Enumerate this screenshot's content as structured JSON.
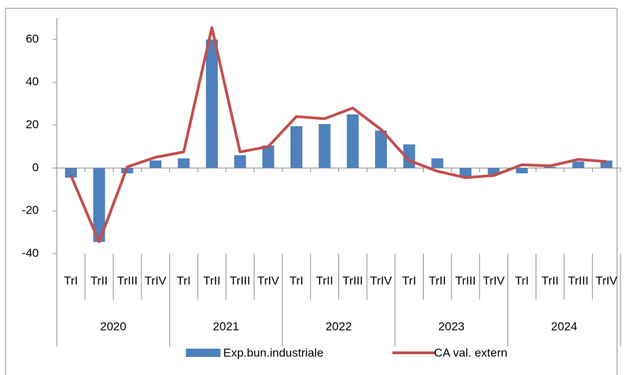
{
  "chart_data": {
    "type": "bar_line",
    "categories": [
      "TrI",
      "TrII",
      "TrIII",
      "TrIV",
      "TrI",
      "TrII",
      "TrIII",
      "TrIV",
      "TrI",
      "TrII",
      "TrIII",
      "TrIV",
      "TrI",
      "TrII",
      "TrIII",
      "TrIV",
      "TrI",
      "TrII",
      "TrIII",
      "TrIV"
    ],
    "groups": [
      "2020",
      "2021",
      "2022",
      "2023",
      "2024"
    ],
    "series": [
      {
        "name": "Exp.bun.industriale",
        "type": "bar",
        "color": "#4f81bd",
        "values": [
          -4.5,
          -34.5,
          -2.5,
          3.5,
          4.5,
          60,
          6,
          10.5,
          19.5,
          20.5,
          25,
          17.5,
          11,
          4.5,
          -4,
          -3,
          -2.5,
          0.5,
          3,
          3.5
        ]
      },
      {
        "name": "CA val. extern",
        "type": "line",
        "color": "#c0504d",
        "values": [
          -3.5,
          -34.5,
          0.5,
          5,
          7.5,
          65.5,
          7.5,
          10,
          24,
          23,
          28,
          18,
          3.5,
          -1.5,
          -4.5,
          -3.5,
          1.5,
          1,
          4,
          3
        ]
      }
    ],
    "ylim": [
      -40,
      70
    ],
    "yticks": [
      -40,
      -20,
      0,
      20,
      40,
      60
    ]
  }
}
